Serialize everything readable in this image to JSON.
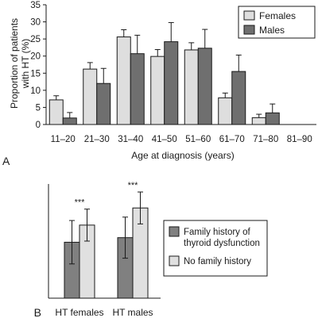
{
  "chart_data": [
    {
      "type": "bar",
      "panel_label": "A",
      "categories": [
        "11–20",
        "21–30",
        "31–40",
        "41–50",
        "51–60",
        "61–70",
        "71–80",
        "81–90"
      ],
      "series": [
        {
          "name": "Females",
          "color": "#dedede",
          "values": [
            7.2,
            16.2,
            25.6,
            19.9,
            21.8,
            7.8,
            2.0,
            0
          ],
          "errors": [
            1.2,
            1.9,
            2.1,
            2.0,
            2.1,
            1.4,
            1.0,
            0
          ]
        },
        {
          "name": "Males",
          "color": "#6f6f6f",
          "values": [
            1.9,
            12.0,
            20.7,
            24.2,
            22.3,
            15.5,
            3.4,
            0
          ],
          "errors": [
            1.6,
            4.4,
            5.4,
            5.6,
            5.5,
            4.8,
            2.6,
            0
          ]
        }
      ],
      "xlabel": "Age at diagnosis (years)",
      "ylabel": "Proportion of patients with HT (%)",
      "ylabel_lines": [
        "Proportion of patients",
        "with HT (%)"
      ],
      "ylim": [
        0,
        35
      ],
      "yticks": [
        "0",
        "5",
        "10",
        "15",
        "20",
        "25",
        "30",
        "35"
      ],
      "grid": false,
      "legend_position": "top-right"
    },
    {
      "type": "bar",
      "panel_label": "B",
      "categories": [
        "HT females",
        "HT males"
      ],
      "series": [
        {
          "name": "Family history of thyroid dysfunction",
          "legend_lines": [
            "Family history of",
            "thyroid dysfunction"
          ],
          "color": "#808080",
          "values": [
            0.49,
            0.53
          ],
          "errors": [
            0.19,
            0.18
          ]
        },
        {
          "name": "No family history",
          "color": "#e0e0e0",
          "values": [
            0.64,
            0.79
          ],
          "errors": [
            0.14,
            0.14
          ]
        }
      ],
      "ylim": [
        0,
        1
      ],
      "annotations": [
        "***",
        "***"
      ],
      "grid": false,
      "legend_position": "right"
    }
  ]
}
